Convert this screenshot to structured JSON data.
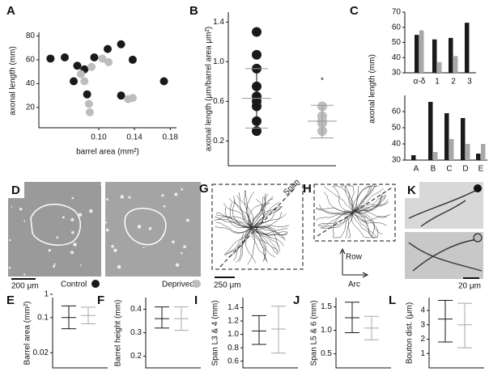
{
  "chart_data": [
    {
      "type": "scatter",
      "label": "A",
      "xlabel": "barrel area (mm²)",
      "ylabel": "axonal length (mm)",
      "xlim": [
        0.033,
        0.187
      ],
      "ylim": [
        3,
        83
      ],
      "xticks": [
        {
          "value": 0.1,
          "label": "0.10"
        },
        0.14,
        0.18
      ],
      "yticks": [
        20,
        40,
        60,
        80
      ],
      "series": [
        {
          "color": "#1a1a1a",
          "x": [
            0.046,
            0.062,
            0.076,
            0.072,
            0.084,
            0.095,
            0.11,
            0.125,
            0.087,
            0.138,
            0.125,
            0.173
          ],
          "values": [
            61,
            62,
            55,
            42,
            52,
            62,
            69,
            73,
            31,
            60,
            30,
            42
          ]
        },
        {
          "color": "#bdbdbd",
          "x": [
            0.08,
            0.092,
            0.104,
            0.089,
            0.09,
            0.111,
            0.133,
            0.138,
            0.084
          ],
          "values": [
            48,
            54,
            61,
            23,
            16,
            58,
            27,
            28,
            42
          ]
        }
      ]
    },
    {
      "type": "dot",
      "label": "B",
      "ylabel": "axonal length (μm/barrel area μm²)",
      "annotation": "*",
      "ylim": [
        -0.05,
        1.5
      ],
      "yticks": [
        0.2,
        0.6,
        {
          "value": 1,
          "label": "1.0"
        },
        1.4
      ],
      "series": [
        {
          "color": "#1a1a1a",
          "values": [
            1.3,
            1.07,
            0.93,
            0.75,
            0.65,
            0.6,
            0.55,
            0.4,
            0.3
          ],
          "mean": 0.63,
          "lower": 0.33,
          "upper": 0.93
        },
        {
          "color": "#bdbdbd",
          "values": [
            0.55,
            0.45,
            0.4,
            0.38,
            0.3
          ],
          "mean": 0.4,
          "lower": 0.23,
          "upper": 0.56
        }
      ]
    },
    {
      "type": "bar",
      "label": "C",
      "ylabel": "axonal length (mm)",
      "categories": [
        "α-δ",
        "1",
        "2",
        "3"
      ],
      "ylim": [
        30,
        70
      ],
      "yticks": [
        30,
        40,
        50,
        60,
        70
      ],
      "series": [
        {
          "color": "#1a1a1a",
          "values": [
            55,
            52,
            53,
            63
          ]
        },
        {
          "color": "#a8a8a8",
          "values": [
            58,
            37,
            41,
            null
          ]
        }
      ]
    },
    {
      "type": "bar",
      "categories": [
        "A",
        "B",
        "C",
        "D",
        "E"
      ],
      "ylim": [
        30,
        70
      ],
      "yticks": [
        30,
        40,
        50,
        60
      ],
      "series": [
        {
          "color": "#1a1a1a",
          "values": [
            33,
            66,
            59,
            56,
            34
          ]
        },
        {
          "color": "#a8a8a8",
          "values": [
            null,
            35,
            43,
            40,
            40
          ]
        }
      ]
    },
    {
      "type": "errorbar",
      "label": "E",
      "ylabel": "Barrel area (mm²)",
      "log": true,
      "ylim": [
        0.01,
        0.25
      ],
      "yticks": [
        0.02,
        0.1,
        1
      ],
      "colors": [
        "#1a1a1a",
        "#a8a8a8"
      ],
      "values": [
        0.1,
        0.11
      ],
      "lower": [
        0.06,
        0.075
      ],
      "upper": [
        0.17,
        0.16
      ]
    },
    {
      "type": "errorbar",
      "label": "F",
      "ylabel": "Barrel height (mm)",
      "ylim": [
        0.15,
        0.45
      ],
      "yticks": [
        0.2,
        0.3,
        0.4
      ],
      "colors": [
        "#1a1a1a",
        "#a8a8a8"
      ],
      "values": [
        0.36,
        0.36
      ],
      "lower": [
        0.32,
        0.31
      ],
      "upper": [
        0.41,
        0.41
      ]
    },
    {
      "type": "errorbar",
      "label": "I",
      "ylabel": "Span L3 & 4 (mm)",
      "ylim": [
        0.5,
        1.55
      ],
      "yticks": [
        0.6,
        0.8,
        {
          "value": 1,
          "label": "1.0"
        },
        1.2,
        1.4
      ],
      "colors": [
        "#1a1a1a",
        "#a8a8a8"
      ],
      "values": [
        1.05,
        1.08
      ],
      "lower": [
        0.85,
        0.72
      ],
      "upper": [
        1.28,
        1.42
      ]
    },
    {
      "type": "errorbar",
      "label": "J",
      "ylabel": "Span L5 & 6 (mm)",
      "ylim": [
        0.2,
        1.7
      ],
      "yticks": [
        0.5,
        {
          "value": 1,
          "label": "1.0"
        },
        1.5
      ],
      "colors": [
        "#1a1a1a",
        "#a8a8a8"
      ],
      "values": [
        1.27,
        1.05
      ],
      "lower": [
        0.95,
        0.8
      ],
      "upper": [
        1.6,
        1.3
      ]
    },
    {
      "type": "errorbar",
      "label": "L",
      "ylabel": "Bouton dist. (μm)",
      "ylim": [
        0,
        4.9
      ],
      "yticks": [
        1,
        2,
        3,
        4
      ],
      "colors": [
        "#1a1a1a",
        "#a8a8a8"
      ],
      "values": [
        3.4,
        3.0
      ],
      "lower": [
        1.8,
        1.4
      ],
      "upper": [
        4.7,
        4.5
      ]
    }
  ],
  "panels": {
    "D": {
      "label": "D",
      "scale": "200 μm",
      "control": "Control",
      "deprived": "Deprived"
    },
    "G": {
      "label": "G",
      "axis": "Span",
      "scale": "250 μm"
    },
    "H": {
      "label": "H",
      "row": "Row",
      "arc": "Arc"
    },
    "K": {
      "label": "K",
      "scale": "20 μm"
    }
  }
}
